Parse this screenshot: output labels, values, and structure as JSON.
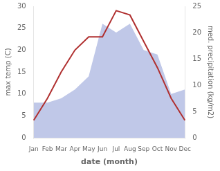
{
  "chart_data": {
    "type": "line",
    "categories": [
      "Jan",
      "Feb",
      "Mar",
      "Apr",
      "May",
      "Jun",
      "Jul",
      "Aug",
      "Sep",
      "Oct",
      "Nov",
      "Dec"
    ],
    "series": [
      {
        "type": "area",
        "color": "#c0c8e8",
        "values": [
          8.0,
          8.0,
          9.0,
          11.0,
          14.0,
          26.0,
          24.0,
          26.0,
          20.0,
          19.0,
          10.0,
          11.0
        ]
      },
      {
        "type": "line",
        "color": "#b03030",
        "values": [
          4.0,
          9.0,
          15.0,
          20.0,
          23.0,
          23.0,
          29.0,
          28.0,
          22.0,
          16.0,
          9.0,
          4.0
        ]
      }
    ],
    "xlabel": "date (month)",
    "ylabel": "max temp (C)",
    "y2label": "med. precipitation (kg/m2)",
    "ylim": [
      0,
      30
    ],
    "yticks": [
      0,
      5,
      10,
      15,
      20,
      25,
      30
    ],
    "y2lim": [
      0,
      25
    ],
    "y2ticks": [
      0,
      5,
      10,
      15,
      20,
      25
    ],
    "grid": false
  }
}
